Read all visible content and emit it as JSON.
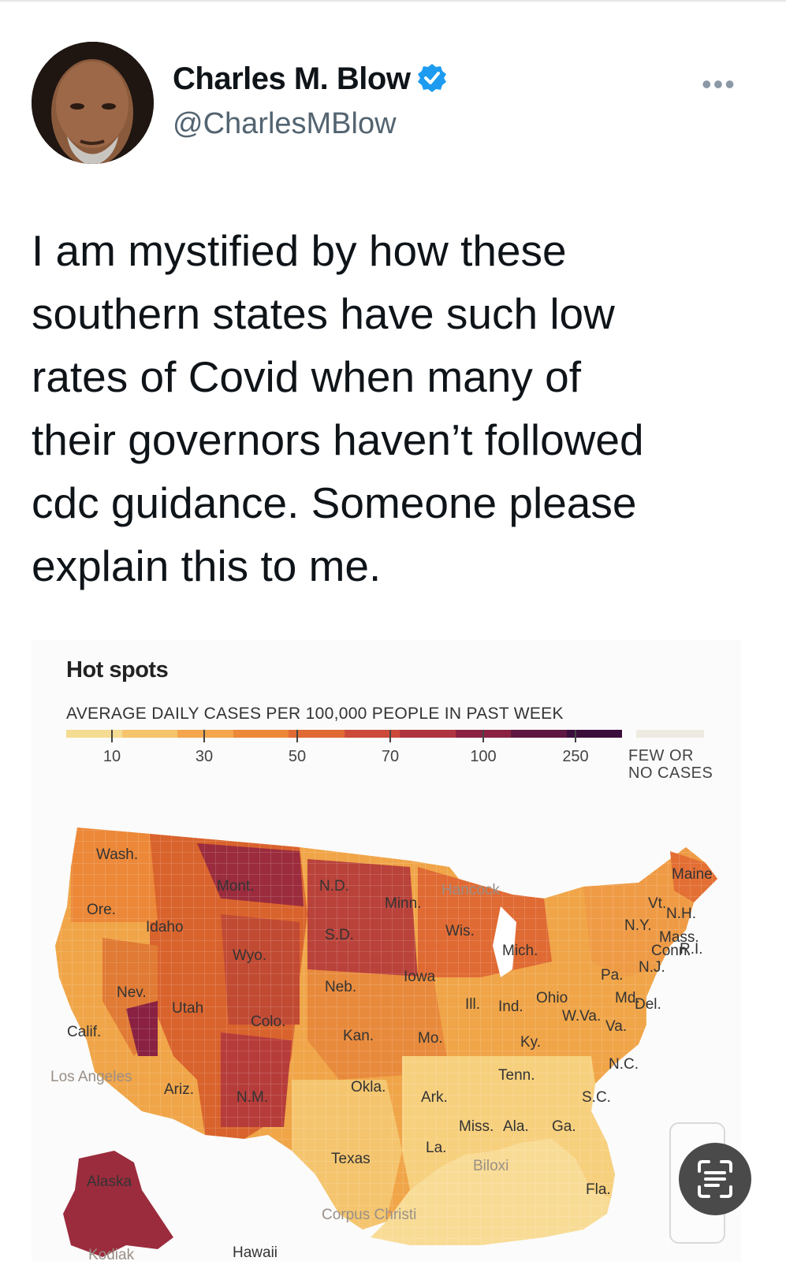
{
  "author": {
    "name": "Charles M. Blow",
    "handle": "@CharlesMBlow",
    "more_label": "•••"
  },
  "tweet": {
    "lines": [
      "I am mystified by how these",
      "southern states have such low",
      "rates of Covid when many of",
      "their governors haven’t followed",
      "cdc guidance. Someone please",
      "explain this to me."
    ]
  },
  "map_card": {
    "title": "Hot spots",
    "subtitle": "AVERAGE DAILY CASES PER 100,000 PEOPLE IN PAST WEEK",
    "legend_ticks": [
      "10",
      "30",
      "50",
      "70",
      "100",
      "250"
    ],
    "legend_colors": [
      "#f4dc92",
      "#f6c46b",
      "#f3a64c",
      "#ec8838",
      "#e06a33",
      "#cc4a3a",
      "#b0343f",
      "#8a2142",
      "#5e1741",
      "#3a0e3b"
    ],
    "few_line1": "FEW OR",
    "few_line2": "NO CASES",
    "state_labels": {
      "wash": "Wash.",
      "ore": "Ore.",
      "idaho": "Idaho",
      "mont": "Mont.",
      "wyo": "Wyo.",
      "nev": "Nev.",
      "utah": "Utah",
      "calif": "Calif.",
      "colo": "Colo.",
      "ariz": "Ariz.",
      "nm": "N.M.",
      "nd": "N.D.",
      "sd": "S.D.",
      "neb": "Neb.",
      "kan": "Kan.",
      "okla": "Okla.",
      "texas": "Texas",
      "minn": "Minn.",
      "iowa": "Iowa",
      "mo": "Mo.",
      "ark": "Ark.",
      "la": "La.",
      "wis": "Wis.",
      "ill": "Ill.",
      "mich": "Mich.",
      "ind": "Ind.",
      "ohio": "Ohio",
      "ky": "Ky.",
      "tenn": "Tenn.",
      "miss": "Miss.",
      "ala": "Ala.",
      "ga": "Ga.",
      "fla": "Fla.",
      "sc": "S.C.",
      "nc": "N.C.",
      "va": "Va.",
      "wva": "W.Va.",
      "pa": "Pa.",
      "md": "Md.",
      "del": "Del.",
      "nj": "N.J.",
      "ny": "N.Y.",
      "conn": "Conn.",
      "ri": "R.I.",
      "mass": "Mass.",
      "vt": "Vt.",
      "nh": "N.H.",
      "maine": "Maine",
      "alaska": "Alaska",
      "hawaii": "Hawaii",
      "kodiak": "Kodiak"
    },
    "city_labels": {
      "los_angeles": "Los Angeles",
      "hancock": "Hancock",
      "corpus_christi": "Corpus Christi",
      "biloxi": "Biloxi"
    }
  }
}
